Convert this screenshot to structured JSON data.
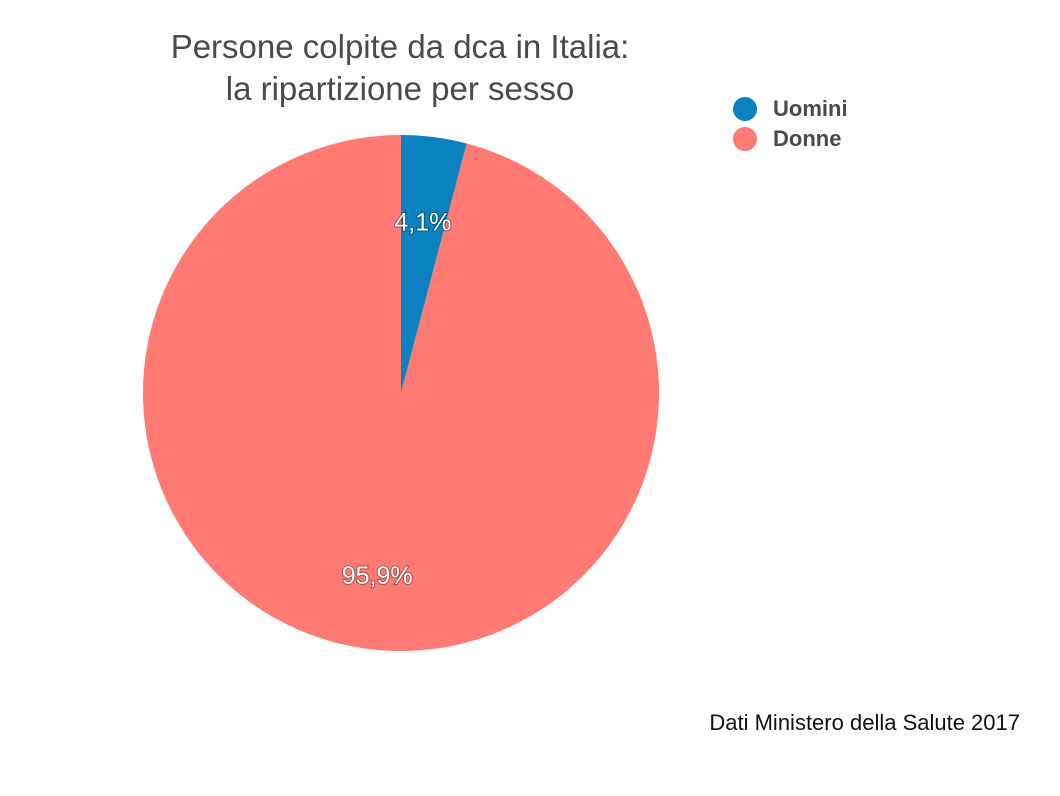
{
  "chart_data": {
    "type": "pie",
    "title": [
      "Persone colpite da dca in Italia:",
      "la ripartizione per sesso"
    ],
    "slices": [
      {
        "name": "Uomini",
        "value": 4.1,
        "label": "4,1%",
        "color": "#0a82c0"
      },
      {
        "name": "Donne",
        "value": 95.9,
        "label": "95,9%",
        "color": "#ff7a73"
      }
    ],
    "legend_position": "top-right",
    "source_note": "Dati Ministero della Salute 2017"
  }
}
